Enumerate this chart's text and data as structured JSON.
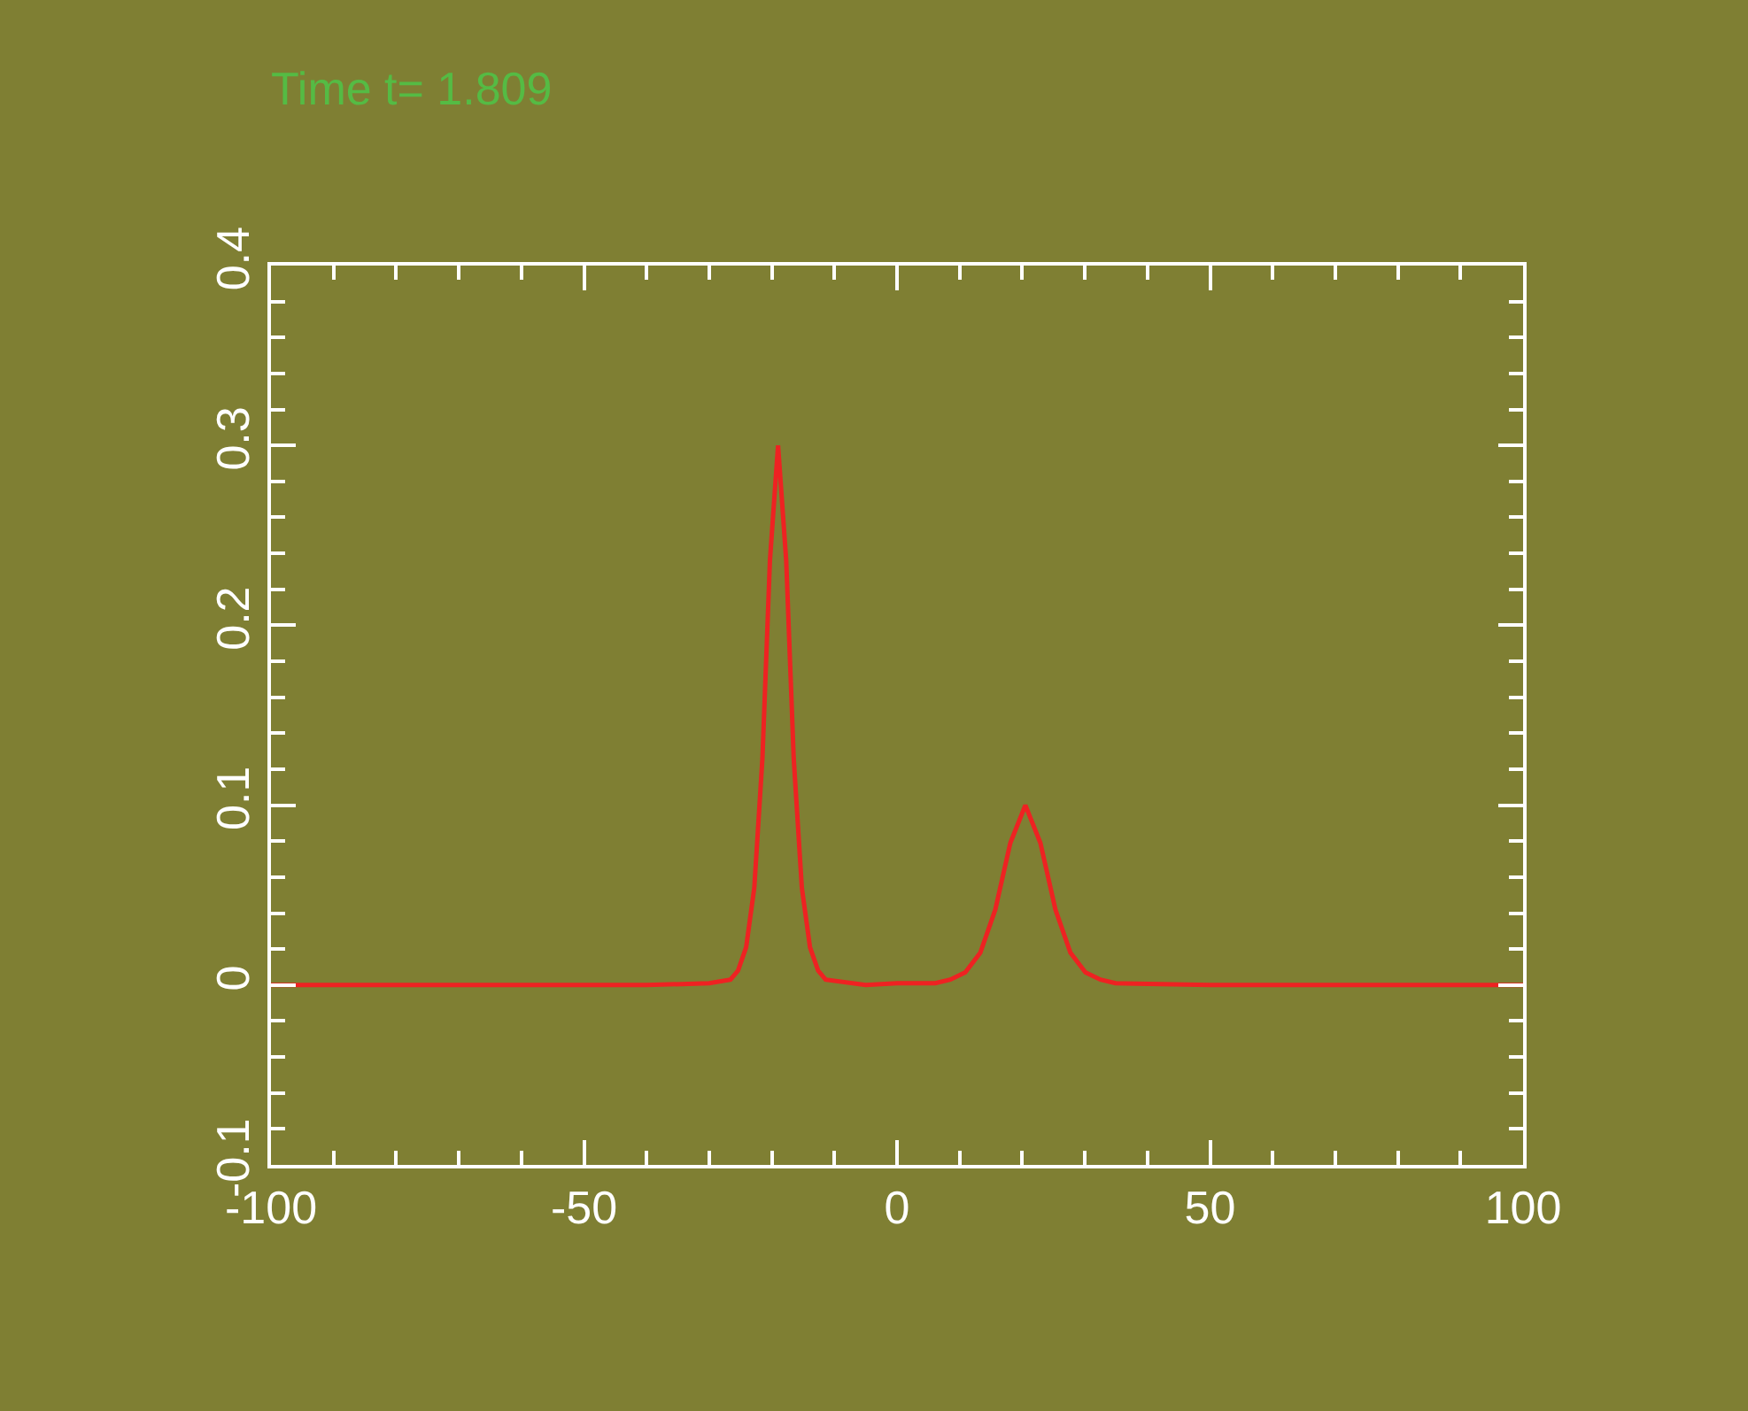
{
  "chart_data": {
    "type": "line",
    "title": "Time t= 1.809",
    "x": [
      -100,
      -60,
      -40,
      -30,
      -26.6,
      -25.4,
      -24.1,
      -22.8,
      -21.5,
      -20.3,
      -19,
      -17.7,
      -16.5,
      -15.2,
      -13.9,
      -12.6,
      -11.4,
      -5,
      0,
      6.1,
      8.5,
      10.9,
      13.3,
      15.7,
      18.1,
      20.5,
      22.9,
      25.3,
      27.7,
      30.1,
      32.5,
      34.9,
      50,
      100
    ],
    "series": [
      {
        "color": "#ee2222",
        "values": [
          0,
          0,
          0,
          0.001,
          0.003,
          0.008,
          0.021,
          0.054,
          0.126,
          0.236,
          0.3,
          0.236,
          0.126,
          0.054,
          0.021,
          0.008,
          0.003,
          0,
          0.001,
          0.001,
          0.003,
          0.007,
          0.018,
          0.042,
          0.079,
          0.1,
          0.079,
          0.042,
          0.018,
          0.007,
          0.003,
          0.001,
          0,
          0
        ]
      }
    ],
    "xlim": [
      -100,
      100
    ],
    "ylim": [
      -0.1,
      0.4
    ],
    "xticks": [
      -100,
      {
        "value": -90,
        "label": null
      },
      {
        "value": -80,
        "label": null
      },
      {
        "value": -70,
        "label": null
      },
      {
        "value": -60,
        "label": null
      },
      -50,
      {
        "value": -40,
        "label": null
      },
      {
        "value": -30,
        "label": null
      },
      {
        "value": -20,
        "label": null
      },
      {
        "value": -10,
        "label": null
      },
      0,
      {
        "value": 10,
        "label": null
      },
      {
        "value": 20,
        "label": null
      },
      {
        "value": 30,
        "label": null
      },
      {
        "value": 40,
        "label": null
      },
      50,
      {
        "value": 60,
        "label": null
      },
      {
        "value": 70,
        "label": null
      },
      {
        "value": 80,
        "label": null
      },
      {
        "value": 90,
        "label": null
      },
      100
    ],
    "yticks": [
      {
        "value": -0.1,
        "label": "-0.1"
      },
      {
        "value": -0.08,
        "label": null
      },
      {
        "value": -0.06,
        "label": null
      },
      {
        "value": -0.04,
        "label": null
      },
      {
        "value": -0.02,
        "label": null
      },
      0,
      {
        "value": 0.02,
        "label": null
      },
      {
        "value": 0.04,
        "label": null
      },
      {
        "value": 0.06,
        "label": null
      },
      {
        "value": 0.08,
        "label": null
      },
      0.1,
      {
        "value": 0.12,
        "label": null
      },
      {
        "value": 0.14,
        "label": null
      },
      {
        "value": 0.16,
        "label": null
      },
      {
        "value": 0.18,
        "label": null
      },
      0.2,
      {
        "value": 0.22,
        "label": null
      },
      {
        "value": 0.24,
        "label": null
      },
      {
        "value": 0.26,
        "label": null
      },
      {
        "value": 0.28,
        "label": null
      },
      0.3,
      {
        "value": 0.32,
        "label": null
      },
      {
        "value": 0.34,
        "label": null
      },
      {
        "value": 0.36,
        "label": null
      },
      {
        "value": 0.38,
        "label": null
      },
      0.4
    ],
    "grid": false,
    "marker": "none",
    "line_style": "solid"
  }
}
